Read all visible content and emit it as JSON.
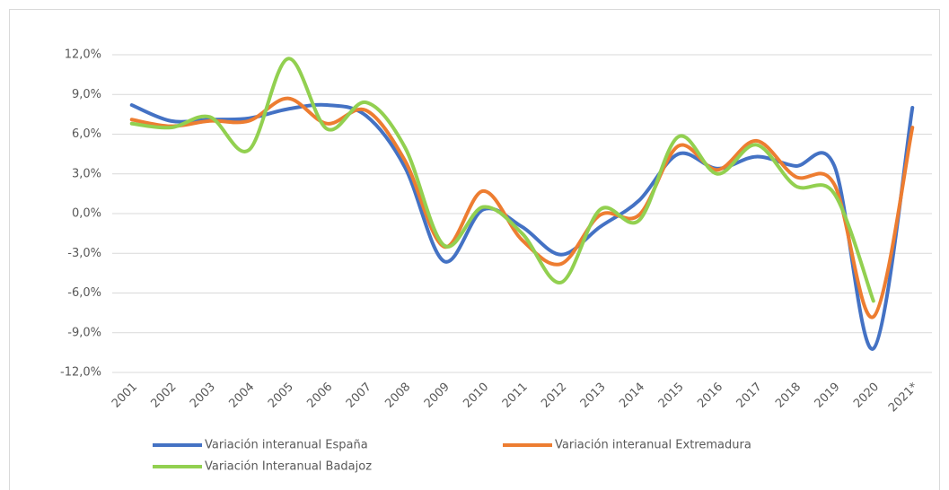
{
  "chart_data": {
    "type": "line",
    "categories": [
      "2001",
      "2002",
      "2003",
      "2004",
      "2005",
      "2006",
      "2007",
      "2008",
      "2009",
      "2010",
      "2011",
      "2012",
      "2013",
      "2014",
      "2015",
      "2016",
      "2017",
      "2018",
      "2019",
      "2020",
      "2021*"
    ],
    "series": [
      {
        "name": "Variación interanual España",
        "color": "#4472c4",
        "values": [
          8.2,
          7.0,
          7.1,
          7.2,
          7.9,
          8.2,
          7.4,
          3.5,
          -3.6,
          0.3,
          -1.0,
          -3.1,
          -1.0,
          1.0,
          4.5,
          3.4,
          4.3,
          3.6,
          3.6,
          -10.2,
          8.0
        ]
      },
      {
        "name": "Variación interanual Extremadura",
        "color": "#ed7d31",
        "values": [
          7.1,
          6.6,
          7.0,
          7.0,
          8.7,
          6.8,
          7.8,
          4.0,
          -2.5,
          1.7,
          -2.0,
          -3.8,
          -0.1,
          -0.1,
          5.1,
          3.3,
          5.5,
          2.8,
          2.2,
          -7.8,
          6.5
        ]
      },
      {
        "name": "Variación Interanual Badajoz",
        "color": "#92d050",
        "values": [
          6.8,
          6.5,
          7.3,
          4.8,
          11.7,
          6.4,
          8.4,
          5.0,
          -2.4,
          0.5,
          -1.5,
          -5.2,
          0.3,
          -0.5,
          5.8,
          3.0,
          5.2,
          2.1,
          1.5,
          -6.6,
          null
        ]
      }
    ],
    "ylim": [
      -12,
      12
    ],
    "yticks": [
      {
        "value": -12,
        "label": "-12,0%"
      },
      {
        "value": -9,
        "label": "-9,0%"
      },
      {
        "value": -6,
        "label": "-6,0%"
      },
      {
        "value": -3,
        "label": "-3,0%"
      },
      {
        "value": 0,
        "label": "0,0%"
      },
      {
        "value": 3,
        "label": "3,0%"
      },
      {
        "value": 6,
        "label": "6,0%"
      },
      {
        "value": 9,
        "label": "9,0%"
      },
      {
        "value": 12,
        "label": "12,0%"
      }
    ],
    "grid": true,
    "smooth": true
  }
}
